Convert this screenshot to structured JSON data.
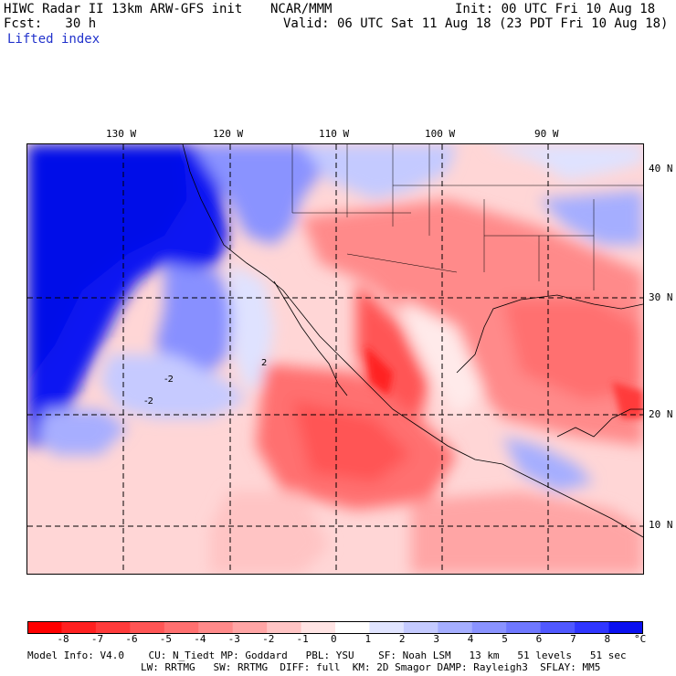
{
  "header": {
    "model": "HIWC Radar II 13km ARW-GFS init",
    "org": "NCAR/MMM",
    "init": "Init: 00 UTC Fri 10 Aug 18",
    "fcst": "Fcst:   30 h",
    "valid": "Valid: 06 UTC Sat 11 Aug 18 (23 PDT Fri 10 Aug 18)",
    "field": "Lifted index"
  },
  "map": {
    "lon_labels": [
      "130 W",
      "120 W",
      "110 W",
      "100 W",
      "90 W"
    ],
    "lat_labels": [
      "40 N",
      "30 N",
      "20 N",
      "10 N"
    ],
    "contour_labels": [
      "-2",
      "2",
      "-2"
    ]
  },
  "colorbar": {
    "ticks": [
      "-8",
      "-7",
      "-6",
      "-5",
      "-4",
      "-3",
      "-2",
      "-1",
      "0",
      "1",
      "2",
      "3",
      "4",
      "5",
      "6",
      "7",
      "8"
    ],
    "unit": "°C",
    "colors": [
      "#ff0000",
      "#ff2020",
      "#ff3b3b",
      "#ff5555",
      "#ff7070",
      "#ff8a8a",
      "#ffa5a5",
      "#ffc4c4",
      "#ffe4e4",
      "#ffffff",
      "#e0e4ff",
      "#c4caff",
      "#a5aeff",
      "#8a93ff",
      "#6f78ff",
      "#5058ff",
      "#3036ff",
      "#0a10f0"
    ]
  },
  "footer": {
    "line1": "Model Info: V4.0    CU: N_Tiedt MP: Goddard   PBL: YSU    SF: Noah LSM   13 km   51 levels   51 sec",
    "line2": "LW: RRTMG   SW: RRTMG  DIFF: full  KM: 2D Smagor DAMP: Rayleigh3  SFLAY: MM5"
  }
}
